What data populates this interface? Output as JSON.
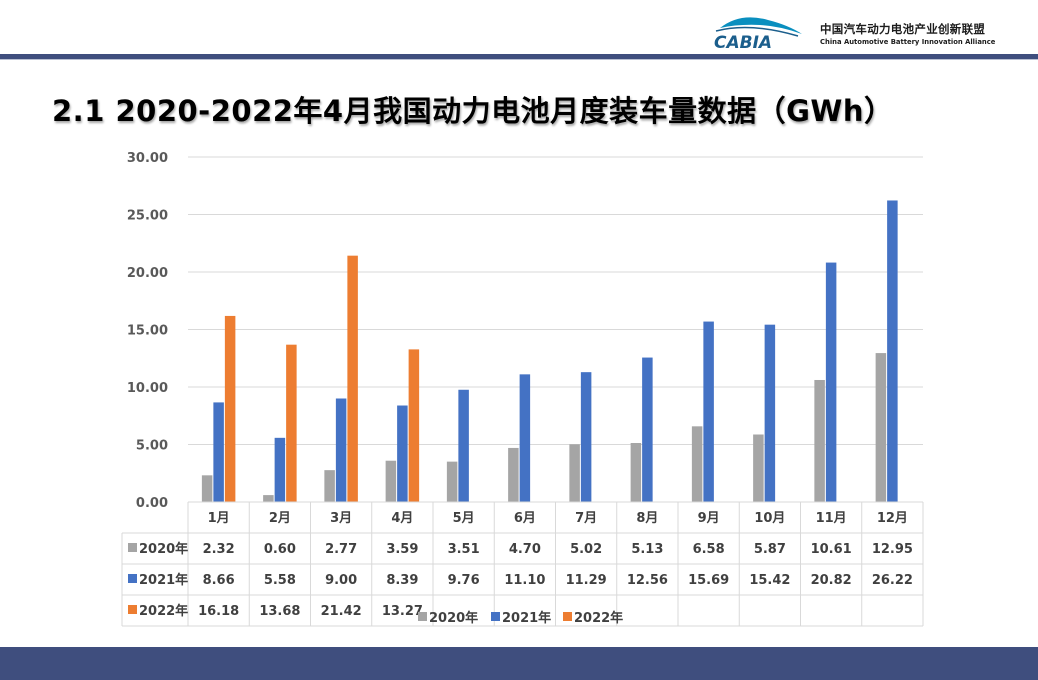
{
  "logo": {
    "mark_text": "CABIA",
    "name_cn": "中国汽车动力电池产业创新联盟",
    "name_en": "China Automotive Battery Innovation Alliance"
  },
  "slide_title": "2.1 2020-2022年4月我国动力电池月度装车量数据（GWh）",
  "colors": {
    "header_bar": "#3f4e7e",
    "s2020": "#a5a5a5",
    "s2021": "#4472c4",
    "s2022": "#ed7d31"
  },
  "chart_data": {
    "type": "bar",
    "title": "",
    "xlabel": "",
    "ylabel": "",
    "ylim": [
      0,
      30
    ],
    "yticks": [
      "0.00",
      "5.00",
      "10.00",
      "15.00",
      "20.00",
      "25.00",
      "30.00"
    ],
    "grid": true,
    "legend_position": "bottom",
    "categories": [
      "1月",
      "2月",
      "3月",
      "4月",
      "5月",
      "6月",
      "7月",
      "8月",
      "9月",
      "10月",
      "11月",
      "12月"
    ],
    "series": [
      {
        "name": "2020年",
        "color": "#a5a5a5",
        "values": [
          2.32,
          0.6,
          2.77,
          3.59,
          3.51,
          4.7,
          5.02,
          5.13,
          6.58,
          5.87,
          10.61,
          12.95
        ],
        "labels": [
          "2.32",
          "0.60",
          "2.77",
          "3.59",
          "3.51",
          "4.70",
          "5.02",
          "5.13",
          "6.58",
          "5.87",
          "10.61",
          "12.95"
        ]
      },
      {
        "name": "2021年",
        "color": "#4472c4",
        "values": [
          8.66,
          5.58,
          9.0,
          8.39,
          9.76,
          11.1,
          11.29,
          12.56,
          15.69,
          15.42,
          20.82,
          26.22
        ],
        "labels": [
          "8.66",
          "5.58",
          "9.00",
          "8.39",
          "9.76",
          "11.10",
          "11.29",
          "12.56",
          "15.69",
          "15.42",
          "20.82",
          "26.22"
        ]
      },
      {
        "name": "2022年",
        "color": "#ed7d31",
        "values": [
          16.18,
          13.68,
          21.42,
          13.27,
          null,
          null,
          null,
          null,
          null,
          null,
          null,
          null
        ],
        "labels": [
          "16.18",
          "13.68",
          "21.42",
          "13.27",
          "",
          "",
          "",
          "",
          "",
          "",
          "",
          ""
        ]
      }
    ]
  }
}
